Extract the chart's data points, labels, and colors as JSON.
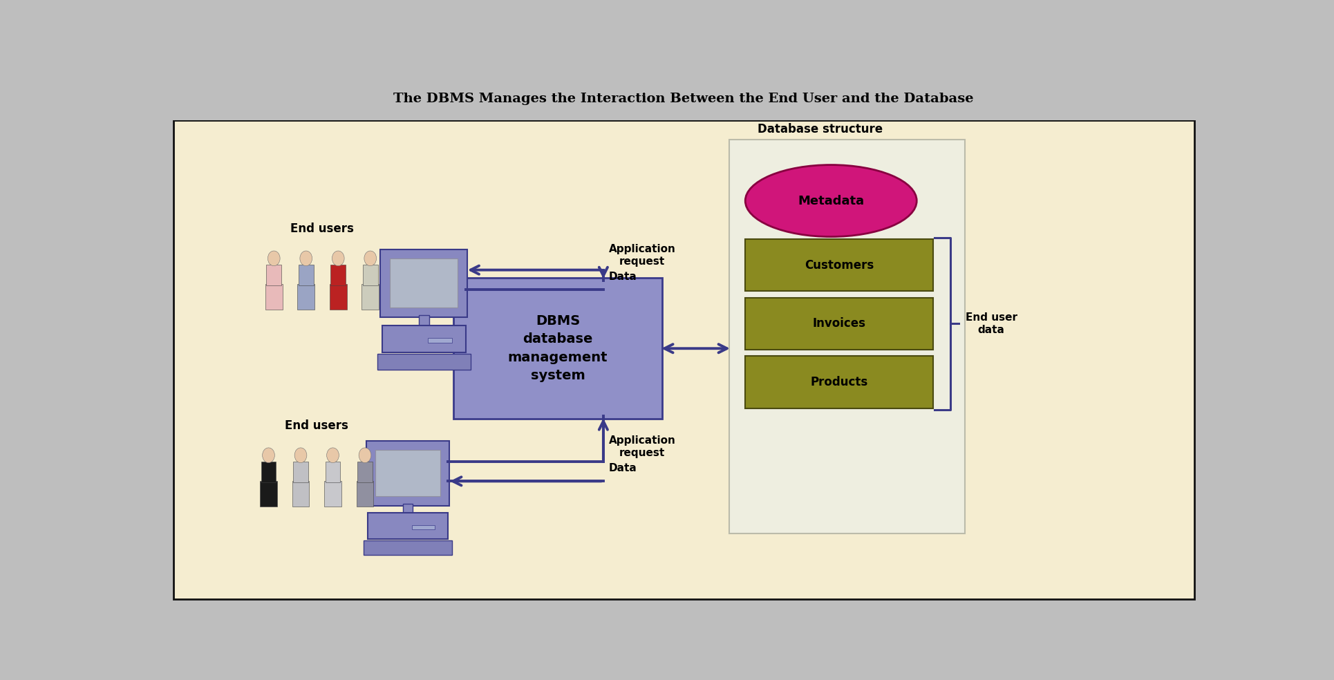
{
  "title": "The DBMS Manages the Interaction Between the End User and the Database",
  "bg_color": "#F5EDD0",
  "title_bg_color": "#BEBEBE",
  "border_color": "#111111",
  "dbms_box_color": "#9090C8",
  "dbms_box_edge": "#3A3A8A",
  "dbms_text": "DBMS\ndatabase\nmanagement\nsystem",
  "db_struct_label": "Database structure",
  "metadata_fill": "#D0157A",
  "metadata_edge": "#880040",
  "metadata_text": "Metadata",
  "item_fill": "#8A8A20",
  "item_edge": "#4A4A10",
  "items": [
    "Customers",
    "Invoices",
    "Products"
  ],
  "end_user_data": "End user\ndata",
  "arrow_color": "#3A3A88",
  "top_label": "End users",
  "bot_label": "End users",
  "app_req": "Application\nrequest",
  "data_lbl": "Data",
  "comp_body": "#8888C0",
  "comp_edge": "#3A3A88",
  "comp_screen": "#B0B8C8",
  "people_top": [
    "#E8BABA",
    "#9AA4C4",
    "#BB2222",
    "#CCCCBC"
  ],
  "people_bot": [
    "#1A1A1A",
    "#C0C0C4",
    "#C8C8CC",
    "#9090A0"
  ]
}
